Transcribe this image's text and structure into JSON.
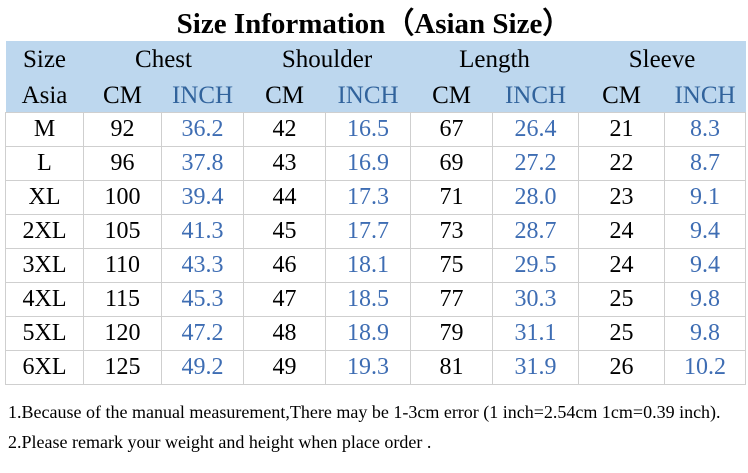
{
  "title": "Size Information（Asian Size）",
  "table": {
    "corner_label": "Size",
    "corner_sub_label": "Asia",
    "groups": [
      {
        "label": "Chest"
      },
      {
        "label": "Shoulder"
      },
      {
        "label": "Length"
      },
      {
        "label": "Sleeve"
      }
    ],
    "unit_cm": "CM",
    "unit_inch": "INCH",
    "rows": [
      [
        "M",
        "92",
        "36.2",
        "42",
        "16.5",
        "67",
        "26.4",
        "21",
        "8.3"
      ],
      [
        "L",
        "96",
        "37.8",
        "43",
        "16.9",
        "69",
        "27.2",
        "22",
        "8.7"
      ],
      [
        "XL",
        "100",
        "39.4",
        "44",
        "17.3",
        "71",
        "28.0",
        "23",
        "9.1"
      ],
      [
        "2XL",
        "105",
        "41.3",
        "45",
        "17.7",
        "73",
        "28.7",
        "24",
        "9.4"
      ],
      [
        "3XL",
        "110",
        "43.3",
        "46",
        "18.1",
        "75",
        "29.5",
        "24",
        "9.4"
      ],
      [
        "4XL",
        "115",
        "45.3",
        "47",
        "18.5",
        "77",
        "30.3",
        "25",
        "9.8"
      ],
      [
        "5XL",
        "120",
        "47.2",
        "48",
        "18.9",
        "79",
        "31.1",
        "25",
        "9.8"
      ],
      [
        "6XL",
        "125",
        "49.2",
        "49",
        "19.3",
        "81",
        "31.9",
        "26",
        "10.2"
      ]
    ]
  },
  "notes": [
    "1.Because of the manual measurement,There may be 1-3cm error (1 inch=2.54cm 1cm=0.39 inch).",
    "2.Please remark your weight and height when place order ."
  ],
  "colors": {
    "header_bg": "#BDD7EE",
    "header_inch_text": "#31639C",
    "inch_value_text": "#3E6DB3",
    "grid_line": "#CFCFCF",
    "text": "#000000"
  }
}
